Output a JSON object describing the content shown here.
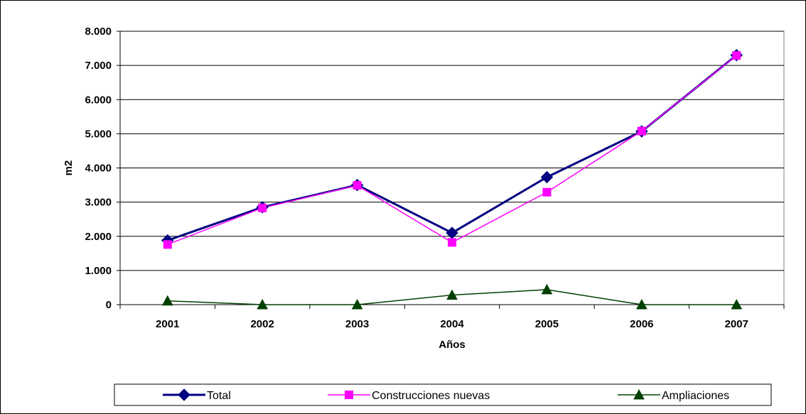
{
  "chart_data": {
    "type": "line",
    "title": "",
    "xlabel": "Años",
    "ylabel": "m2",
    "categories": [
      "2001",
      "2002",
      "2003",
      "2004",
      "2005",
      "2006",
      "2007"
    ],
    "ylim": [
      0,
      8000
    ],
    "yticks": [
      0,
      1000,
      2000,
      3000,
      4000,
      5000,
      6000,
      7000,
      8000
    ],
    "ytick_labels": [
      "0",
      "1.000",
      "2.000",
      "3.000",
      "4.000",
      "5.000",
      "6.000",
      "7.000",
      "8.000"
    ],
    "grid": true,
    "legend_position": "bottom",
    "series": [
      {
        "name": "Total",
        "values": [
          1880,
          2850,
          3500,
          2100,
          3730,
          5070,
          7300
        ],
        "color": "#000080",
        "marker": "diamond"
      },
      {
        "name": "Construcciones nuevas",
        "values": [
          1760,
          2830,
          3490,
          1820,
          3290,
          5080,
          7290
        ],
        "color": "#FF00FF",
        "marker": "square"
      },
      {
        "name": "Ampliaciones",
        "values": [
          110,
          0,
          0,
          280,
          440,
          0,
          0
        ],
        "color": "#004000",
        "marker": "triangle"
      }
    ]
  }
}
